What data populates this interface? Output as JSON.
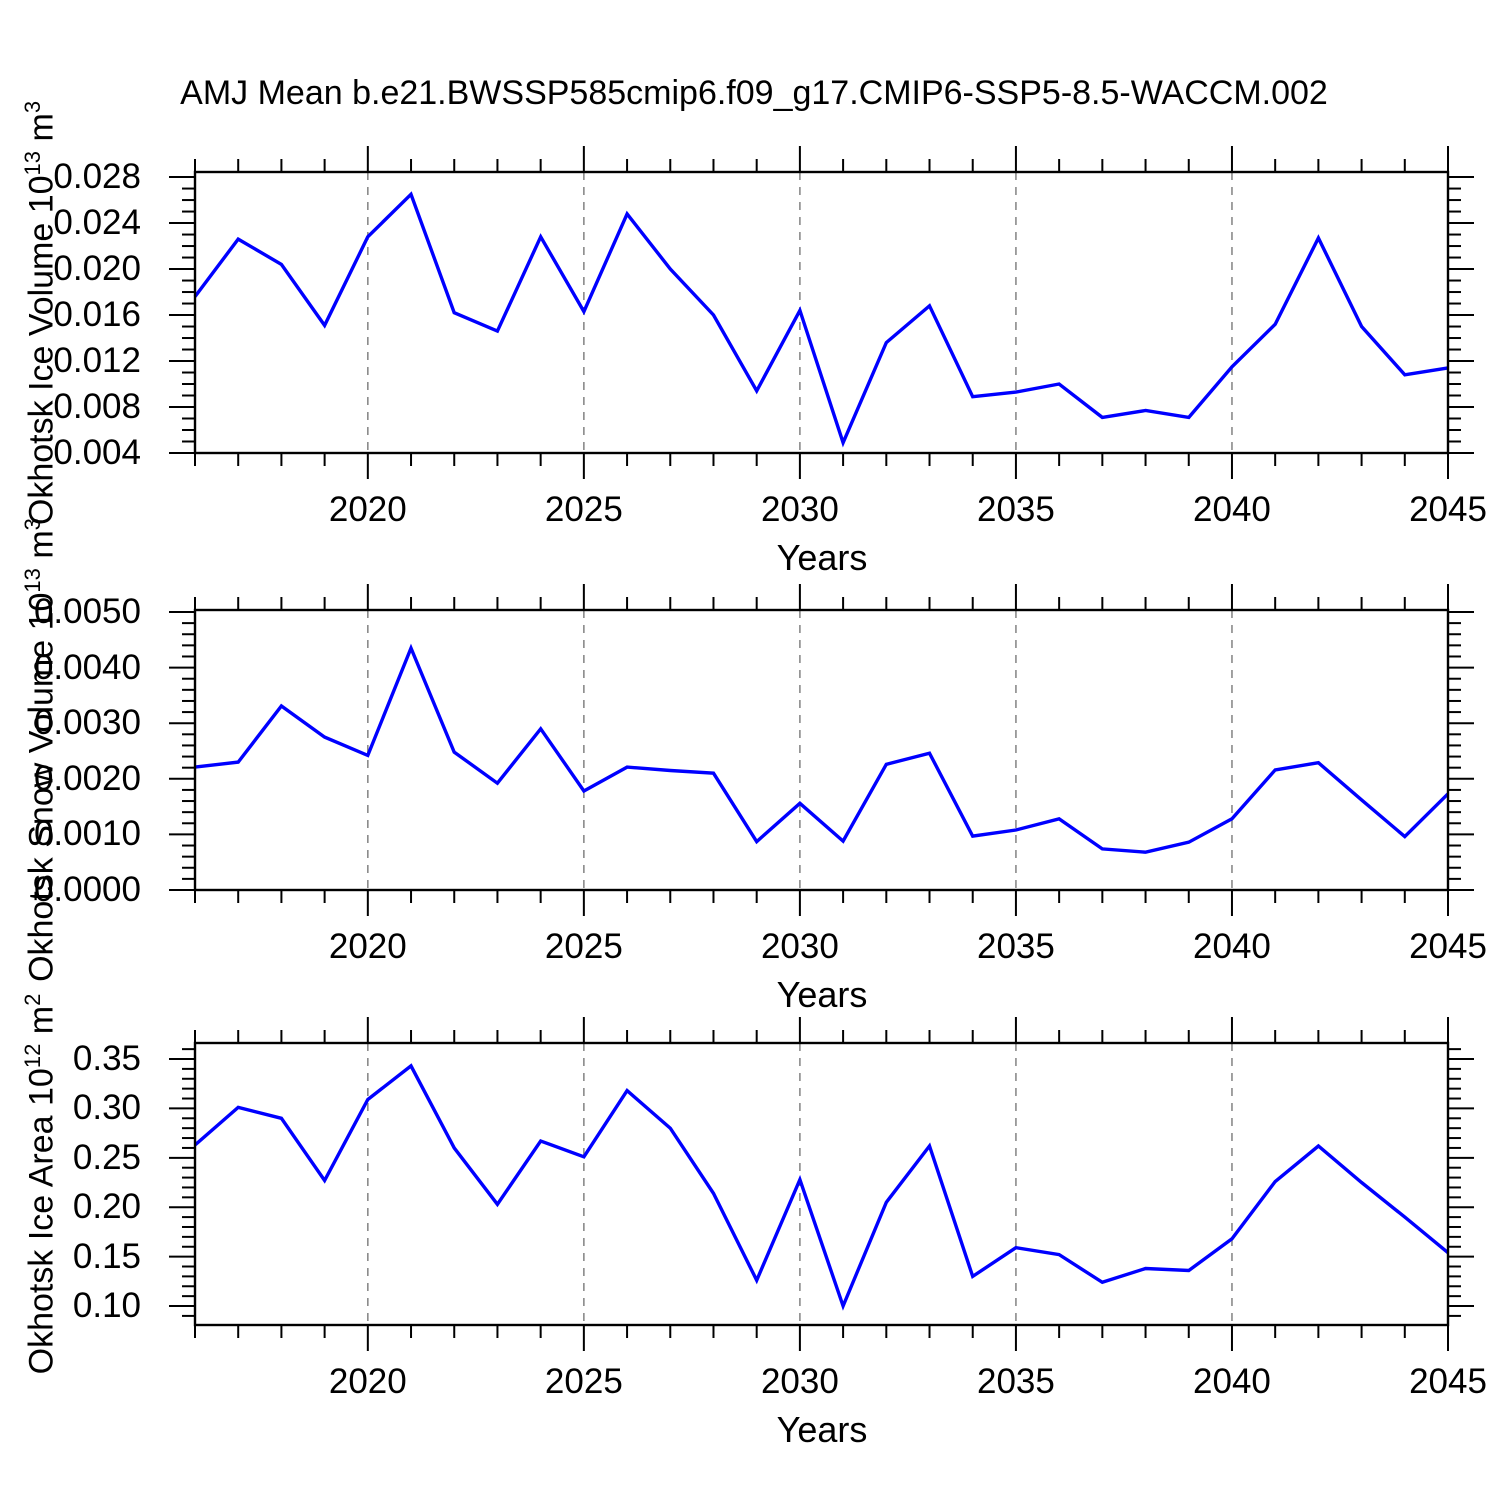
{
  "title": "AMJ Mean b.e21.BWSSP585cmip6.f09_g17.CMIP6-SSP5-8.5-WACCM.002",
  "xlabel": "Years",
  "colors": {
    "line": "#0000ff",
    "grid": "#8a8a8a",
    "axis": "#000000"
  },
  "chart_data": [
    {
      "type": "line",
      "name": "okhotsk-ice-volume",
      "ylabel_parts": [
        [
          "Okhotsk Ice Volume 10",
          false
        ],
        [
          "13",
          true
        ],
        [
          " m",
          false
        ],
        [
          "3",
          true
        ]
      ],
      "xlabel": "Years",
      "x": [
        2016,
        2017,
        2018,
        2019,
        2020,
        2021,
        2022,
        2023,
        2024,
        2025,
        2026,
        2027,
        2028,
        2029,
        2030,
        2031,
        2032,
        2033,
        2034,
        2035,
        2036,
        2037,
        2038,
        2039,
        2040,
        2041,
        2042,
        2043,
        2044,
        2045
      ],
      "values": [
        0.0176,
        0.0226,
        0.0204,
        0.0151,
        0.0228,
        0.0265,
        0.0162,
        0.0146,
        0.0228,
        0.0163,
        0.0248,
        0.02,
        0.016,
        0.0094,
        0.0164,
        0.0049,
        0.0136,
        0.0168,
        0.0089,
        0.0093,
        0.01,
        0.0071,
        0.0077,
        0.0071,
        0.0115,
        0.0152,
        0.0227,
        0.015,
        0.0108,
        0.0114
      ],
      "xlim": [
        2016,
        2045
      ],
      "ylim": [
        0.004,
        0.02844
      ],
      "ytick_values": [
        0.004,
        0.008,
        0.012,
        0.016,
        0.02,
        0.024,
        0.028
      ],
      "ytick_labels": [
        "0.004",
        "0.008",
        "0.012",
        "0.016",
        "0.020",
        "0.024",
        "0.028"
      ],
      "yminor_step": 0.001,
      "xticks_major": [
        2020,
        2025,
        2030,
        2035,
        2040,
        2045
      ],
      "xtick_labels": [
        "2020",
        "2025",
        "2030",
        "2035",
        "2040",
        "2045"
      ],
      "grid_x": [
        2020,
        2025,
        2030,
        2035,
        2040
      ],
      "grid": true,
      "legend": "none"
    },
    {
      "type": "line",
      "name": "okhotsk-snow-volume",
      "ylabel_parts": [
        [
          "Okhotsk Snow Volume 10",
          false
        ],
        [
          "13",
          true
        ],
        [
          " m",
          false
        ],
        [
          "3",
          true
        ]
      ],
      "xlabel": "Years",
      "x": [
        2016,
        2017,
        2018,
        2019,
        2020,
        2021,
        2022,
        2023,
        2024,
        2025,
        2026,
        2027,
        2028,
        2029,
        2030,
        2031,
        2032,
        2033,
        2034,
        2035,
        2036,
        2037,
        2038,
        2039,
        2040,
        2041,
        2042,
        2043,
        2044,
        2045
      ],
      "values": [
        0.00221,
        0.0023,
        0.00331,
        0.00275,
        0.00242,
        0.00435,
        0.00248,
        0.00192,
        0.0029,
        0.00178,
        0.00221,
        0.00215,
        0.0021,
        0.00087,
        0.00156,
        0.00088,
        0.00226,
        0.00246,
        0.00097,
        0.00108,
        0.00128,
        0.00074,
        0.00068,
        0.00086,
        0.00128,
        0.00216,
        0.00229,
        0.00162,
        0.00096,
        0.00173
      ],
      "xlim": [
        2016,
        2045
      ],
      "ylim": [
        0,
        0.005036
      ],
      "ytick_values": [
        0.0,
        0.001,
        0.002,
        0.003,
        0.004,
        0.005
      ],
      "ytick_labels": [
        "0.0000",
        "0.0010",
        "0.0020",
        "0.0030",
        "0.0040",
        "0.0050"
      ],
      "yminor_step": 0.0002,
      "xticks_major": [
        2020,
        2025,
        2030,
        2035,
        2040,
        2045
      ],
      "xtick_labels": [
        "2020",
        "2025",
        "2030",
        "2035",
        "2040",
        "2045"
      ],
      "grid_x": [
        2020,
        2025,
        2030,
        2035,
        2040
      ],
      "grid": true,
      "legend": "none"
    },
    {
      "type": "line",
      "name": "okhotsk-ice-area",
      "ylabel_parts": [
        [
          "Okhotsk Ice Area 10",
          false
        ],
        [
          "12",
          true
        ],
        [
          " m",
          false
        ],
        [
          "2",
          true
        ]
      ],
      "xlabel": "Years",
      "x": [
        2016,
        2017,
        2018,
        2019,
        2020,
        2021,
        2022,
        2023,
        2024,
        2025,
        2026,
        2027,
        2028,
        2029,
        2030,
        2031,
        2032,
        2033,
        2034,
        2035,
        2036,
        2037,
        2038,
        2039,
        2040,
        2041,
        2042,
        2043,
        2044,
        2045
      ],
      "values": [
        0.263,
        0.301,
        0.29,
        0.227,
        0.309,
        0.343,
        0.26,
        0.203,
        0.267,
        0.251,
        0.318,
        0.28,
        0.214,
        0.126,
        0.228,
        0.1,
        0.205,
        0.262,
        0.13,
        0.159,
        0.152,
        0.124,
        0.138,
        0.136,
        0.168,
        0.226,
        0.262,
        0.225,
        0.19,
        0.154
      ],
      "xlim": [
        2016,
        2045
      ],
      "ylim": [
        0.0808,
        0.3662
      ],
      "ytick_values": [
        0.1,
        0.15,
        0.2,
        0.25,
        0.3,
        0.35
      ],
      "ytick_labels": [
        "0.10",
        "0.15",
        "0.20",
        "0.25",
        "0.30",
        "0.35"
      ],
      "yminor_step": 0.01,
      "xticks_major": [
        2020,
        2025,
        2030,
        2035,
        2040,
        2045
      ],
      "xtick_labels": [
        "2020",
        "2025",
        "2030",
        "2035",
        "2040",
        "2045"
      ],
      "grid_x": [
        2020,
        2025,
        2030,
        2035,
        2040
      ],
      "grid": true,
      "legend": "none"
    }
  ]
}
